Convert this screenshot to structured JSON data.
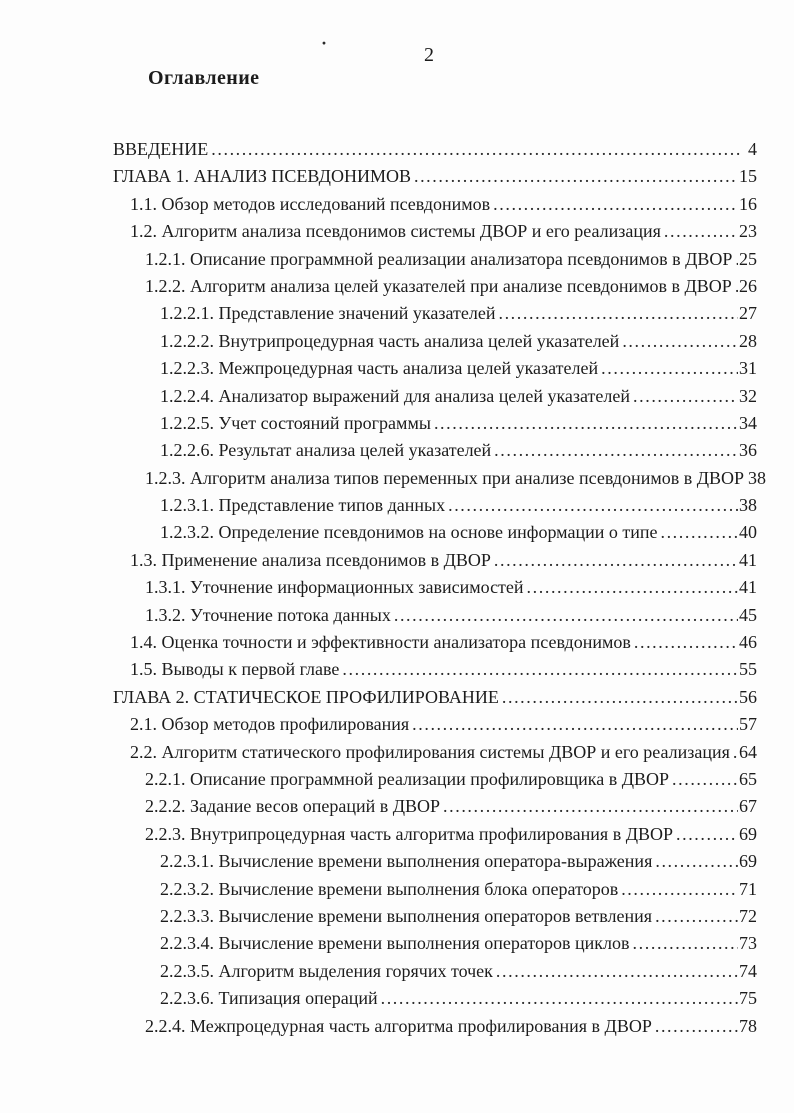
{
  "page": {
    "number": "2",
    "heading": "Оглавление",
    "stray_mark": "·"
  },
  "toc": {
    "entries": [
      {
        "label": "ВВЕДЕНИЕ",
        "page": "4",
        "level": 0
      },
      {
        "label": "ГЛАВА 1. АНАЛИЗ ПСЕВДОНИМОВ",
        "page": "15",
        "level": 0
      },
      {
        "label": "1.1. Обзор методов исследований псевдонимов",
        "page": "16",
        "level": 1
      },
      {
        "label": "1.2. Алгоритм анализа псевдонимов системы ДВОР и его реализация",
        "page": "23",
        "level": 1
      },
      {
        "label": "1.2.1. Описание программной реализации анализатора псевдонимов в ДВОР",
        "page": "25",
        "level": 2
      },
      {
        "label": "1.2.2. Алгоритм анализа целей указателей при анализе псевдонимов в ДВОР",
        "page": "26",
        "level": 2
      },
      {
        "label": "1.2.2.1. Представление значений указателей",
        "page": "27",
        "level": 3
      },
      {
        "label": "1.2.2.2. Внутрипроцедурная часть анализа целей указателей",
        "page": "28",
        "level": 3
      },
      {
        "label": "1.2.2.3. Межпроцедурная часть анализа целей указателей",
        "page": "31",
        "level": 3
      },
      {
        "label": "1.2.2.4. Анализатор выражений для анализа целей указателей",
        "page": "32",
        "level": 3
      },
      {
        "label": "1.2.2.5. Учет состояний программы",
        "page": "34",
        "level": 3
      },
      {
        "label": "1.2.2.6. Результат анализа целей указателей",
        "page": "36",
        "level": 3
      },
      {
        "label": "1.2.3. Алгоритм анализа типов переменных при анализе псевдонимов в ДВОР",
        "page": "38",
        "level": 2
      },
      {
        "label": "1.2.3.1. Представление типов данных",
        "page": "38",
        "level": 3
      },
      {
        "label": "1.2.3.2. Определение псевдонимов на основе информации о типе",
        "page": "40",
        "level": 3
      },
      {
        "label": "1.3. Применение анализа псевдонимов в ДВОР",
        "page": "41",
        "level": 1
      },
      {
        "label": "1.3.1. Уточнение информационных зависимостей",
        "page": "41",
        "level": 2
      },
      {
        "label": "1.3.2. Уточнение потока данных",
        "page": "45",
        "level": 2
      },
      {
        "label": "1.4. Оценка точности и эффективности анализатора псевдонимов",
        "page": "46",
        "level": 1
      },
      {
        "label": "1.5. Выводы к первой главе",
        "page": "55",
        "level": 1
      },
      {
        "label": "ГЛАВА 2. СТАТИЧЕСКОЕ ПРОФИЛИРОВАНИЕ",
        "page": "56",
        "level": 0
      },
      {
        "label": "2.1. Обзор методов профилирования",
        "page": "57",
        "level": 1
      },
      {
        "label": "2.2. Алгоритм статического профилирования системы ДВОР и его реализация",
        "page": "64",
        "level": 1
      },
      {
        "label": "2.2.1. Описание программной реализации профилировщика в ДВОР",
        "page": "65",
        "level": 2
      },
      {
        "label": "2.2.2. Задание весов операций в ДВОР",
        "page": "67",
        "level": 2
      },
      {
        "label": "2.2.3. Внутрипроцедурная часть алгоритма профилирования в ДВОР",
        "page": "69",
        "level": 2
      },
      {
        "label": "2.2.3.1. Вычисление времени выполнения оператора-выражения",
        "page": "69",
        "level": 3
      },
      {
        "label": "2.2.3.2. Вычисление времени выполнения блока операторов",
        "page": "71",
        "level": 3
      },
      {
        "label": "2.2.3.3. Вычисление времени выполнения операторов ветвления",
        "page": "72",
        "level": 3
      },
      {
        "label": "2.2.3.4. Вычисление времени выполнения операторов циклов",
        "page": "73",
        "level": 3
      },
      {
        "label": "2.2.3.5. Алгоритм выделения горячих точек",
        "page": "74",
        "level": 3
      },
      {
        "label": "2.2.3.6. Типизация операций",
        "page": "75",
        "level": 3
      },
      {
        "label": "2.2.4. Межпроцедурная часть алгоритма профилирования в ДВОР",
        "page": "78",
        "level": 2
      }
    ]
  }
}
